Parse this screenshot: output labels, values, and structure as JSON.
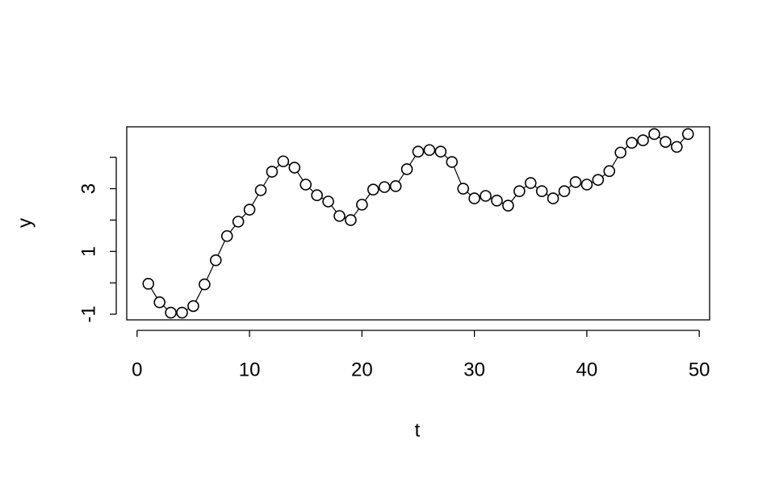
{
  "chart_data": {
    "type": "line",
    "x_label": "t",
    "y_label": "y",
    "x": [
      1,
      2,
      3,
      4,
      5,
      6,
      7,
      8,
      9,
      10,
      11,
      12,
      13,
      14,
      15,
      16,
      17,
      18,
      19,
      20,
      21,
      22,
      23,
      24,
      25,
      26,
      27,
      28,
      29,
      30,
      31,
      32,
      33,
      34,
      35,
      36,
      37,
      38,
      39,
      40,
      41,
      42,
      43,
      44,
      45,
      46,
      47,
      48,
      49
    ],
    "values": [
      -0.03,
      -0.62,
      -0.95,
      -0.95,
      -0.74,
      -0.05,
      0.72,
      1.49,
      1.95,
      2.33,
      2.95,
      3.54,
      3.87,
      3.67,
      3.13,
      2.79,
      2.59,
      2.13,
      2.0,
      2.49,
      2.97,
      3.05,
      3.08,
      3.62,
      4.18,
      4.23,
      4.18,
      3.85,
      3.0,
      2.69,
      2.77,
      2.62,
      2.46,
      2.92,
      3.18,
      2.92,
      2.69,
      2.92,
      3.21,
      3.13,
      3.28,
      3.56,
      4.15,
      4.46,
      4.54,
      4.74,
      4.49,
      4.33,
      4.74
    ],
    "color": "#000000",
    "markers": "open-circle",
    "xlim": [
      -0.92,
      50.92
    ],
    "xticks": [
      0,
      10,
      20,
      30,
      40,
      50
    ],
    "ylim": [
      -1.18,
      4.97
    ],
    "yticks": [
      -1,
      {
        "value": 0,
        "label": null
      },
      1,
      {
        "value": 2,
        "label": null
      },
      3,
      {
        "value": 4,
        "label": null
      }
    ],
    "grid": false
  }
}
